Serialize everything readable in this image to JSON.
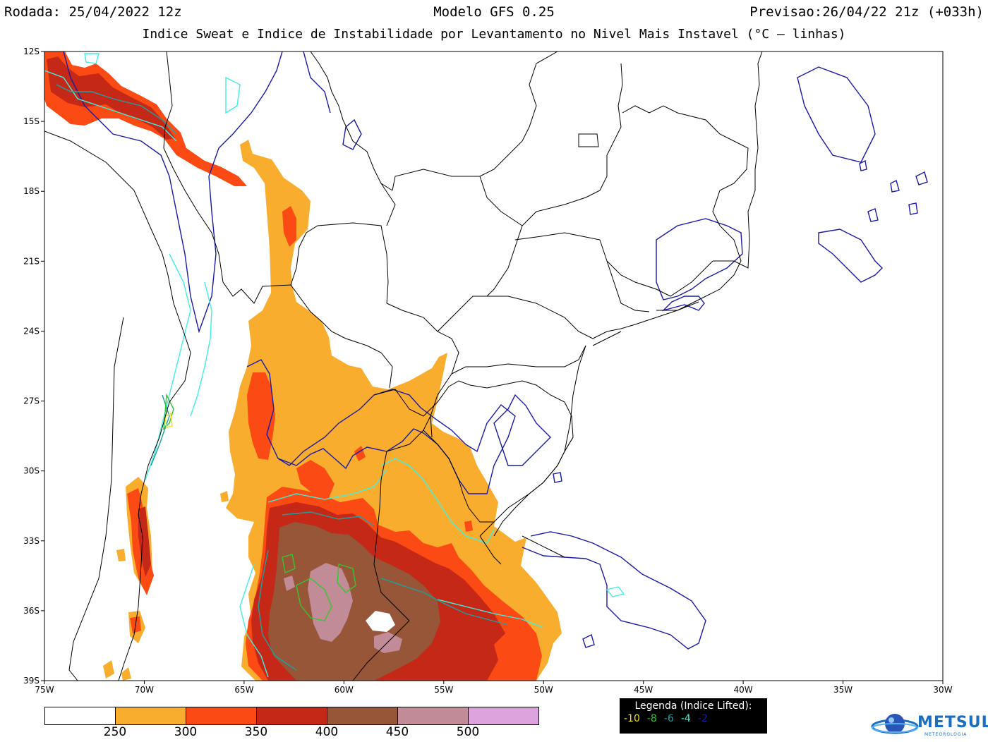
{
  "header": {
    "left": "Rodada: 25/04/2022 12z",
    "center": "Modelo GFS 0.25",
    "right": "Previsao:26/04/22 21z (+033h)",
    "subtitle": "Indice Sweat e Indice de Instabilidade por Levantamento no Nivel Mais Instavel (°C – linhas)"
  },
  "map": {
    "lat_labels": [
      "12S",
      "15S",
      "18S",
      "21S",
      "24S",
      "27S",
      "30S",
      "33S",
      "36S",
      "39S"
    ],
    "lon_labels": [
      "75W",
      "70W",
      "65W",
      "60W",
      "55W",
      "50W",
      "45W",
      "40W",
      "35W",
      "30W"
    ],
    "lat_range": [
      -39,
      -12
    ],
    "lon_range": [
      -75,
      -30
    ]
  },
  "colorbar": {
    "labels": [
      "250",
      "300",
      "350",
      "400",
      "450",
      "500"
    ],
    "colors": [
      "#ffffff",
      "#f9ad2f",
      "#fb4a13",
      "#c52816",
      "#965637",
      "#c28b98",
      "#dca2dc"
    ]
  },
  "legend": {
    "title": "Legenda (Indice Lifted):",
    "items": [
      {
        "label": "-10",
        "color": "#f0e020"
      },
      {
        "label": "-8",
        "color": "#30c830"
      },
      {
        "label": "-6",
        "color": "#1fa0a0"
      },
      {
        "label": "-4",
        "color": "#40f0e0"
      },
      {
        "label": "-2",
        "color": "#1a1aa8"
      }
    ]
  },
  "logo": {
    "name": "METSUL",
    "tagline": "METEOROLOGIA"
  }
}
